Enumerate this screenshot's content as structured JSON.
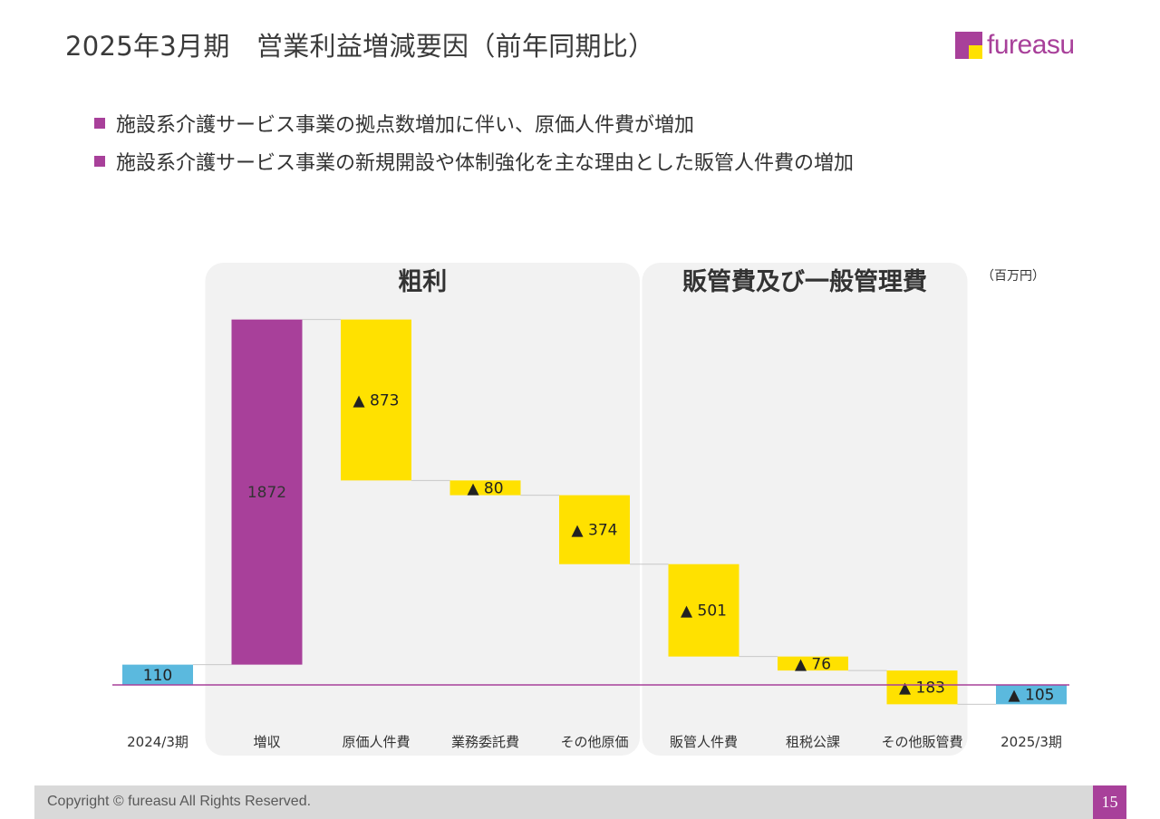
{
  "header": {
    "title": "2025年3月期　営業利益増減要因（前年同期比）",
    "logo": {
      "text": "fureasu",
      "brand_color": "#a8409a",
      "accent_color": "#ffe100"
    }
  },
  "bullets": [
    "施設系介護サービス事業の拠点数増加に伴い、原価人件費が増加",
    "施設系介護サービス事業の新規開設や体制強化を主な理由とした販管人件費の増加"
  ],
  "chart_data": {
    "type": "waterfall",
    "unit": "（百万円）",
    "groups": [
      {
        "label": "粗利",
        "from": 1,
        "to": 4
      },
      {
        "label": "販管費及び一般管理費",
        "from": 5,
        "to": 7
      }
    ],
    "categories": [
      "2024/3期",
      "増収",
      "原価人件費",
      "業務委託費",
      "その他原価",
      "販管人件費",
      "租税公課",
      "その他販管費",
      "2025/3期"
    ],
    "values": [
      110,
      1872,
      -873,
      -80,
      -374,
      -501,
      -76,
      -183,
      -105
    ],
    "labels": [
      "110",
      "1872",
      "▲ 873",
      "▲ 80",
      "▲ 374",
      "▲ 501",
      "▲ 76",
      "▲ 183",
      "▲ 105"
    ],
    "kinds": [
      "total",
      "increase",
      "decrease",
      "decrease",
      "decrease",
      "decrease",
      "decrease",
      "decrease",
      "total"
    ],
    "colors": {
      "total": "#5bb9de",
      "increase": "#a8409a",
      "decrease": "#ffe100",
      "baseline": "#a8409a",
      "group_bg": "#f2f2f2",
      "connector": "#c8c8c8"
    }
  },
  "footer": {
    "copyright": "Copyright © fureasu All Rights Reserved.",
    "page_number": "15"
  }
}
